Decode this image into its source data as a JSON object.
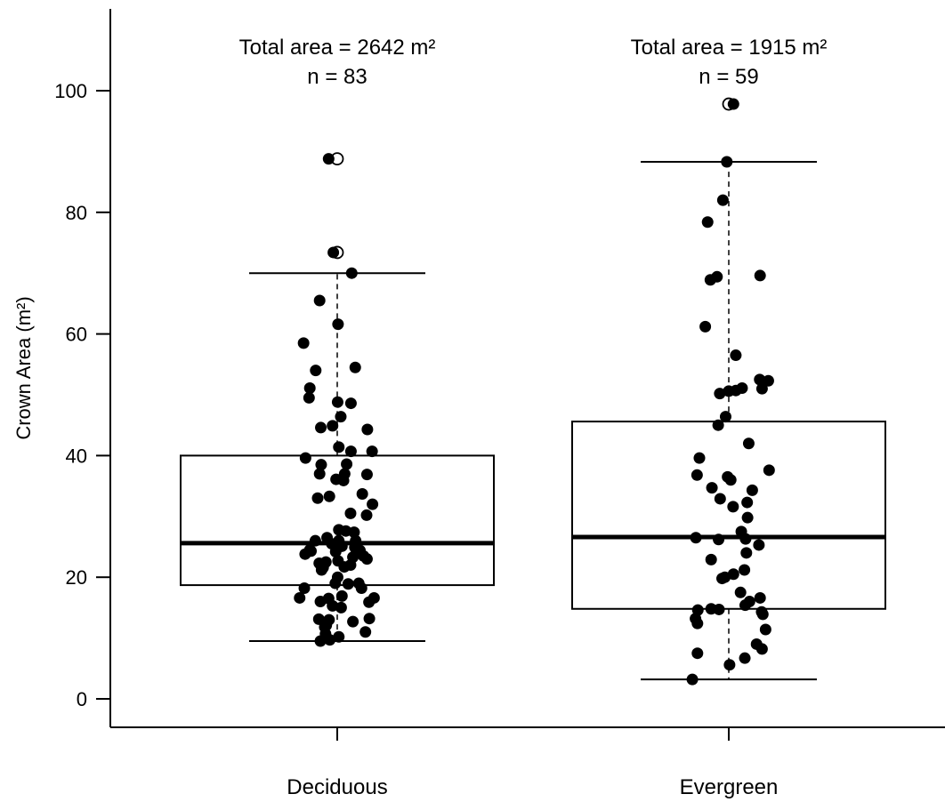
{
  "chart_data": {
    "type": "box",
    "ylabel": "Crown Area (m²)",
    "xlabel": "",
    "ylim": [
      -4,
      113
    ],
    "yticks": [
      0,
      20,
      40,
      60,
      80,
      100
    ],
    "grid": false,
    "categories": [
      "Deciduous",
      "Evergreen"
    ],
    "annotations": [
      {
        "line1": "Total area = 2642 m²",
        "line2": "n = 83"
      },
      {
        "line1": "Total area = 1915 m²",
        "line2": "n = 59"
      }
    ],
    "boxes": [
      {
        "name": "Deciduous",
        "whisker_low": 9.5,
        "q1": 18.7,
        "median": 25.6,
        "q3": 40.0,
        "whisker_high": 70.0,
        "outliers": [
          73.4,
          88.8
        ]
      },
      {
        "name": "Evergreen",
        "whisker_low": 3.2,
        "q1": 14.8,
        "median": 26.6,
        "q3": 45.6,
        "whisker_high": 88.3,
        "outliers": [
          97.8
        ]
      }
    ],
    "points": [
      [
        [
          -0.022,
          88.8
        ],
        [
          -0.01,
          73.4
        ],
        [
          -0.045,
          65.5
        ],
        [
          -0.086,
          58.5
        ],
        [
          0.002,
          61.6
        ],
        [
          0.046,
          54.5
        ],
        [
          -0.055,
          54.0
        ],
        [
          -0.07,
          51.1
        ],
        [
          0.035,
          48.6
        ],
        [
          -0.072,
          49.5
        ],
        [
          0.001,
          48.8
        ],
        [
          0.077,
          44.3
        ],
        [
          -0.042,
          44.6
        ],
        [
          -0.012,
          44.9
        ],
        [
          0.009,
          46.4
        ],
        [
          0.035,
          40.7
        ],
        [
          0.004,
          41.4
        ],
        [
          -0.081,
          39.6
        ],
        [
          -0.041,
          38.5
        ],
        [
          0.024,
          38.6
        ],
        [
          0.089,
          40.7
        ],
        [
          0.019,
          37.0
        ],
        [
          -0.045,
          37.0
        ],
        [
          -0.003,
          36.1
        ],
        [
          0.016,
          35.9
        ],
        [
          0.076,
          36.9
        ],
        [
          0.09,
          32.0
        ],
        [
          0.064,
          33.7
        ],
        [
          -0.02,
          33.3
        ],
        [
          -0.05,
          33.0
        ],
        [
          0.034,
          30.5
        ],
        [
          0.022,
          27.6
        ],
        [
          -0.026,
          26.5
        ],
        [
          0.004,
          27.8
        ],
        [
          -0.014,
          25.5
        ],
        [
          0.047,
          26.0
        ],
        [
          0.058,
          24.4
        ],
        [
          -0.067,
          24.3
        ],
        [
          -0.004,
          24.2
        ],
        [
          0.04,
          23.3
        ],
        [
          -0.082,
          23.8
        ],
        [
          -0.046,
          22.3
        ],
        [
          0.002,
          22.7
        ],
        [
          0.034,
          22.0
        ],
        [
          -0.029,
          22.5
        ],
        [
          -0.084,
          18.2
        ],
        [
          0.018,
          21.7
        ],
        [
          -0.04,
          21.2
        ],
        [
          0.076,
          23.0
        ],
        [
          0.001,
          20.0
        ],
        [
          0.055,
          19.0
        ],
        [
          -0.005,
          19.0
        ],
        [
          0.062,
          18.2
        ],
        [
          -0.022,
          16.5
        ],
        [
          0.012,
          16.9
        ],
        [
          -0.043,
          16.0
        ],
        [
          -0.012,
          15.3
        ],
        [
          0.081,
          15.9
        ],
        [
          0.094,
          16.6
        ],
        [
          -0.096,
          16.6
        ],
        [
          -0.021,
          13.0
        ],
        [
          0.01,
          15.0
        ],
        [
          0.04,
          12.7
        ],
        [
          0.082,
          13.2
        ],
        [
          -0.047,
          13.1
        ],
        [
          -0.032,
          11.8
        ],
        [
          0.072,
          11.0
        ],
        [
          -0.03,
          10.7
        ],
        [
          0.004,
          10.2
        ],
        [
          -0.019,
          9.7
        ],
        [
          -0.043,
          9.5
        ],
        [
          -0.028,
          12.1
        ],
        [
          0.043,
          27.4
        ],
        [
          -0.056,
          26.0
        ],
        [
          -0.07,
          24.5
        ],
        [
          0.004,
          26.0
        ],
        [
          0.012,
          25.1
        ],
        [
          0.045,
          24.9
        ],
        [
          0.067,
          23.5
        ],
        [
          0.028,
          18.9
        ],
        [
          -0.036,
          21.6
        ],
        [
          0.037,
          70.0
        ],
        [
          0.075,
          30.2
        ]
      ],
      [
        [
          0.012,
          97.8
        ],
        [
          -0.005,
          88.3
        ],
        [
          -0.015,
          82.0
        ],
        [
          -0.054,
          78.4
        ],
        [
          0.08,
          69.6
        ],
        [
          -0.047,
          68.9
        ],
        [
          -0.06,
          61.2
        ],
        [
          0.018,
          56.5
        ],
        [
          0.101,
          52.3
        ],
        [
          0.085,
          51.0
        ],
        [
          0.034,
          51.1
        ],
        [
          0.018,
          50.7
        ],
        [
          0.0,
          50.6
        ],
        [
          -0.023,
          50.2
        ],
        [
          -0.008,
          46.4
        ],
        [
          -0.027,
          45.0
        ],
        [
          0.051,
          42.0
        ],
        [
          0.103,
          37.6
        ],
        [
          -0.075,
          39.6
        ],
        [
          -0.081,
          36.8
        ],
        [
          -0.043,
          34.7
        ],
        [
          0.06,
          34.3
        ],
        [
          -0.003,
          36.5
        ],
        [
          0.005,
          36.0
        ],
        [
          0.047,
          32.3
        ],
        [
          0.011,
          31.6
        ],
        [
          0.048,
          29.8
        ],
        [
          -0.022,
          32.9
        ],
        [
          0.032,
          27.5
        ],
        [
          0.077,
          25.3
        ],
        [
          -0.026,
          26.2
        ],
        [
          -0.084,
          26.5
        ],
        [
          -0.045,
          22.9
        ],
        [
          0.045,
          24.0
        ],
        [
          0.04,
          21.2
        ],
        [
          0.012,
          20.5
        ],
        [
          -0.01,
          20.0
        ],
        [
          0.08,
          16.6
        ],
        [
          0.03,
          17.5
        ],
        [
          0.053,
          16.0
        ],
        [
          0.042,
          15.4
        ],
        [
          -0.017,
          19.8
        ],
        [
          -0.079,
          14.6
        ],
        [
          -0.045,
          14.8
        ],
        [
          -0.025,
          14.7
        ],
        [
          0.084,
          14.3
        ],
        [
          0.087,
          13.9
        ],
        [
          -0.08,
          12.4
        ],
        [
          -0.085,
          13.2
        ],
        [
          0.094,
          11.4
        ],
        [
          0.071,
          9.0
        ],
        [
          0.085,
          8.2
        ],
        [
          0.041,
          6.7
        ],
        [
          -0.08,
          7.5
        ],
        [
          0.002,
          5.6
        ],
        [
          -0.093,
          3.2
        ],
        [
          0.079,
          52.5
        ],
        [
          0.043,
          26.3
        ],
        [
          -0.03,
          69.4
        ]
      ]
    ]
  }
}
